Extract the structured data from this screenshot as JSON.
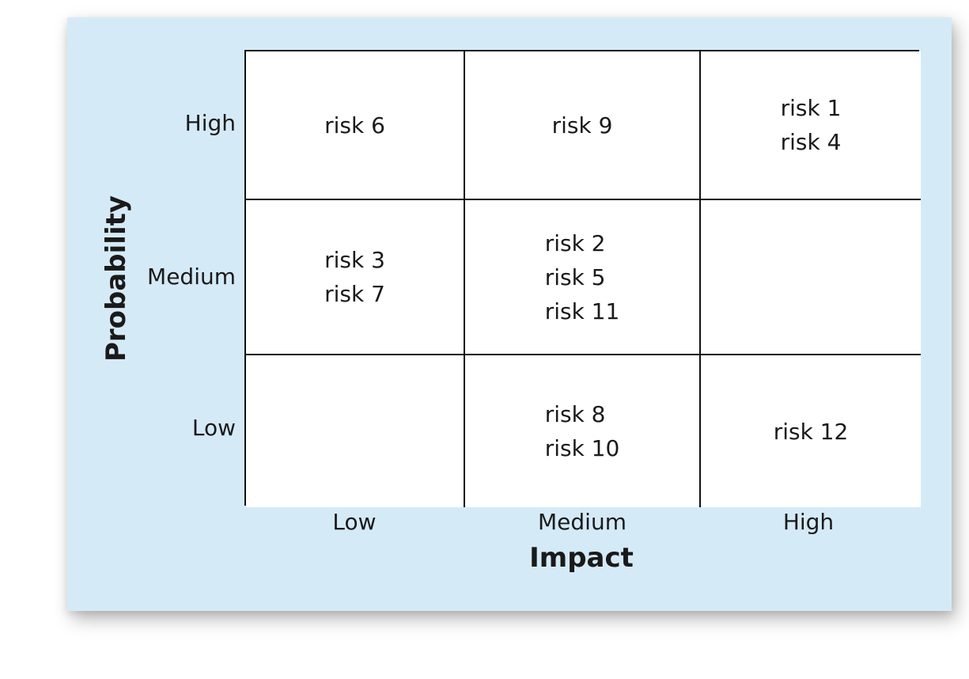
{
  "axes": {
    "x_label": "Impact",
    "y_label": "Probability",
    "x_ticks": [
      "Low",
      "Medium",
      "High"
    ],
    "y_ticks": [
      "High",
      "Medium",
      "Low"
    ]
  },
  "matrix": {
    "rows": [
      {
        "probability": "High",
        "cells": [
          [
            "risk 6"
          ],
          [
            "risk 9"
          ],
          [
            "risk 1",
            "risk 4"
          ]
        ]
      },
      {
        "probability": "Medium",
        "cells": [
          [
            "risk 3",
            "risk 7"
          ],
          [
            "risk 2",
            "risk 5",
            "risk 11"
          ],
          []
        ]
      },
      {
        "probability": "Low",
        "cells": [
          [],
          [
            "risk 8",
            "risk 10"
          ],
          [
            "risk 12"
          ]
        ]
      }
    ]
  },
  "colors": {
    "panel_background": "#d5eaf7",
    "cell_background": "#ffffff",
    "grid_lines": "#111111",
    "text": "#1a1a1a"
  }
}
